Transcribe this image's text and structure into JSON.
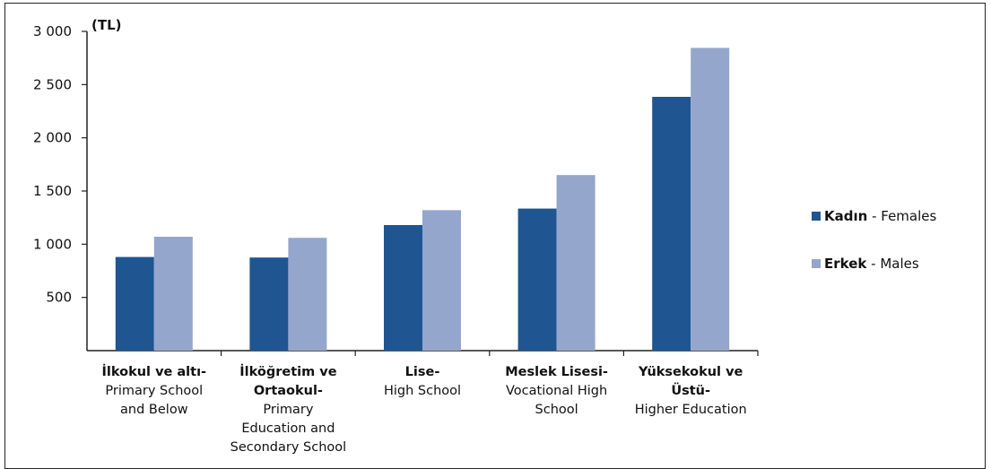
{
  "chart_data": {
    "type": "bar",
    "unit_label": "(TL)",
    "title": "",
    "xlabel": "",
    "ylabel": "",
    "ylim": [
      0,
      3000
    ],
    "yticks": [
      500,
      1000,
      1500,
      2000,
      2500,
      3000
    ],
    "ytick_labels": [
      "500",
      "1 000",
      "1 500",
      "2 000",
      "2 500",
      "3 000"
    ],
    "grid": false,
    "legend_position": "right",
    "categories": [
      {
        "bold": "İlkokul ve altı-",
        "lines": [
          "İlkokul ve altı-",
          "Primary School",
          "and Below"
        ]
      },
      {
        "bold": "İlköğretim ve Ortaokul-",
        "lines": [
          "İlköğretim ve",
          "Ortaokul-",
          "Primary",
          "Education and",
          "Secondary School"
        ]
      },
      {
        "bold": "Lise-",
        "lines": [
          "Lise-",
          "High School"
        ]
      },
      {
        "bold": "Meslek Lisesi-",
        "lines": [
          "Meslek Lisesi-",
          "Vocational High",
          "School"
        ]
      },
      {
        "bold": "Yüksekokul ve Üstü-",
        "lines": [
          "Yüksekokul ve",
          "Üstü-",
          "Higher Education"
        ]
      }
    ],
    "series": [
      {
        "name_bold": "Kadın",
        "name_rest": " - Females",
        "color": "#1f5591",
        "values": [
          880,
          875,
          1180,
          1335,
          2385
        ]
      },
      {
        "name_bold": "Erkek",
        "name_rest": " - Males",
        "color": "#95a6cc",
        "values": [
          1070,
          1060,
          1320,
          1650,
          2845
        ]
      }
    ]
  }
}
